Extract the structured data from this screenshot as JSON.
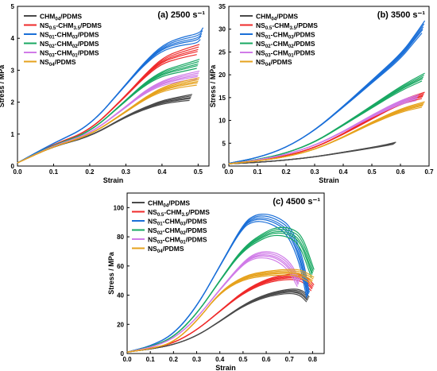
{
  "figure": {
    "y_label": "Stress / MPa",
    "x_label": "Strain"
  },
  "chart_data": [
    {
      "type": "line",
      "panel_title": "(a) 2500 s⁻¹",
      "xlabel": "Strain",
      "ylabel": "Stress / MPa",
      "xlim": [
        0,
        0.53
      ],
      "ylim": [
        0,
        5
      ],
      "x_ticks": [
        "0.0",
        "0.1",
        "0.2",
        "0.3",
        "0.4",
        "0.5"
      ],
      "y_ticks": [
        "0",
        "1",
        "2",
        "3",
        "4",
        "5"
      ],
      "legend_position": "top-left",
      "series": [
        {
          "name": "CHM04/PDMS",
          "label_main": "CHM",
          "label_sub": "04",
          "label_tail": "/PDMS",
          "color": "#4a4a4a",
          "x": [
            0,
            0.1,
            0.2,
            0.3,
            0.35,
            0.4,
            0.45,
            0.48
          ],
          "y": [
            0.1,
            0.62,
            0.92,
            1.55,
            1.8,
            2.0,
            2.1,
            2.15
          ]
        },
        {
          "name": "NS0.5-CHM3.5/PDMS",
          "label_main": "NS",
          "label_sub": "0.5",
          "label_mid": "-CHM",
          "label_sub2": "3.5",
          "label_tail": "/PDMS",
          "color": "#ef2a2a",
          "x": [
            0,
            0.1,
            0.2,
            0.3,
            0.35,
            0.4,
            0.45,
            0.5
          ],
          "y": [
            0.1,
            0.68,
            1.1,
            2.2,
            2.8,
            3.3,
            3.5,
            3.65
          ]
        },
        {
          "name": "NS01-CHM03/PDMS",
          "label_main": "NS",
          "label_sub": "01",
          "label_mid": "-CHM",
          "label_sub2": "03",
          "label_tail": "/PDMS",
          "color": "#1a6fd8",
          "x": [
            0,
            0.1,
            0.2,
            0.3,
            0.35,
            0.4,
            0.45,
            0.5,
            0.51
          ],
          "y": [
            0.1,
            0.72,
            1.25,
            2.55,
            3.2,
            3.7,
            3.9,
            4.0,
            4.15
          ]
        },
        {
          "name": "NS02-CHM02/PDMS",
          "label_main": "NS",
          "label_sub": "02",
          "label_mid": "-CHM",
          "label_sub2": "02",
          "label_tail": "/PDMS",
          "color": "#18a862",
          "x": [
            0,
            0.1,
            0.2,
            0.3,
            0.35,
            0.4,
            0.45,
            0.5
          ],
          "y": [
            0.1,
            0.66,
            1.05,
            2.05,
            2.55,
            2.9,
            3.05,
            3.2
          ]
        },
        {
          "name": "NS03-CHM01/PDMS",
          "label_main": "NS",
          "label_sub": "03",
          "label_mid": "-CHM",
          "label_sub2": "01",
          "label_tail": "/PDMS",
          "color": "#d07be8",
          "x": [
            0,
            0.1,
            0.2,
            0.3,
            0.35,
            0.4,
            0.45,
            0.5
          ],
          "y": [
            0.1,
            0.64,
            1.0,
            1.85,
            2.3,
            2.6,
            2.75,
            2.85
          ]
        },
        {
          "name": "NS04/PDMS",
          "label_main": "NS",
          "label_sub": "04",
          "label_tail": "/PDMS",
          "color": "#e6a21d",
          "x": [
            0,
            0.1,
            0.2,
            0.3,
            0.35,
            0.4,
            0.45,
            0.5
          ],
          "y": [
            0.1,
            0.62,
            0.96,
            1.7,
            2.1,
            2.4,
            2.55,
            2.65
          ]
        }
      ]
    },
    {
      "type": "line",
      "panel_title": "(b) 3500 s⁻¹",
      "xlabel": "Strain",
      "ylabel": "Stress / MPa",
      "xlim": [
        0,
        0.7
      ],
      "ylim": [
        0,
        35
      ],
      "x_ticks": [
        "0.0",
        "0.1",
        "0.2",
        "0.3",
        "0.4",
        "0.5",
        "0.6",
        "0.7"
      ],
      "y_ticks": [
        "0",
        "5",
        "10",
        "15",
        "20",
        "25",
        "30",
        "35"
      ],
      "legend_position": "top-left",
      "series": [
        {
          "name": "CHM04/PDMS",
          "color": "#4a4a4a",
          "x": [
            0,
            0.1,
            0.2,
            0.3,
            0.4,
            0.5,
            0.55,
            0.58
          ],
          "y": [
            0.5,
            0.8,
            1.3,
            2.0,
            3.0,
            4.0,
            4.6,
            5.0
          ]
        },
        {
          "name": "NS0.5-CHM3.5/PDMS",
          "color": "#ef2a2a",
          "x": [
            0,
            0.1,
            0.2,
            0.3,
            0.4,
            0.5,
            0.6,
            0.68
          ],
          "y": [
            0.5,
            1.2,
            2.2,
            4.0,
            7.0,
            10.5,
            14.0,
            15.5
          ]
        },
        {
          "name": "NS01-CHM03/PDMS",
          "color": "#1a6fd8",
          "x": [
            0,
            0.1,
            0.2,
            0.3,
            0.4,
            0.5,
            0.6,
            0.65,
            0.68
          ],
          "y": [
            0.6,
            1.8,
            4.0,
            7.8,
            13.0,
            18.5,
            24.0,
            28.0,
            30.5
          ]
        },
        {
          "name": "NS02-CHM02/PDMS",
          "color": "#18a862",
          "x": [
            0,
            0.1,
            0.2,
            0.3,
            0.4,
            0.5,
            0.6,
            0.68
          ],
          "y": [
            0.5,
            1.4,
            2.8,
            5.2,
            9.0,
            13.0,
            17.0,
            19.5
          ]
        },
        {
          "name": "NS03-CHM01/PDMS",
          "color": "#d07be8",
          "x": [
            0,
            0.1,
            0.2,
            0.3,
            0.4,
            0.5,
            0.6,
            0.66
          ],
          "y": [
            0.5,
            1.3,
            2.5,
            4.5,
            7.5,
            11.0,
            14.0,
            15.0
          ]
        },
        {
          "name": "NS04/PDMS",
          "color": "#e6a21d",
          "x": [
            0,
            0.1,
            0.2,
            0.3,
            0.4,
            0.5,
            0.6,
            0.68
          ],
          "y": [
            0.5,
            1.1,
            2.0,
            3.6,
            6.3,
            9.5,
            12.2,
            13.5
          ]
        }
      ]
    },
    {
      "type": "line",
      "panel_title": "(c) 4500 s⁻¹",
      "xlabel": "Strain",
      "ylabel": "Stress / MPa",
      "xlim": [
        0,
        0.85
      ],
      "ylim": [
        0,
        110
      ],
      "x_ticks": [
        "0.0",
        "0.1",
        "0.2",
        "0.3",
        "0.4",
        "0.5",
        "0.6",
        "0.7",
        "0.8"
      ],
      "y_ticks": [
        "0",
        "20",
        "40",
        "60",
        "80",
        "100"
      ],
      "legend_position": "top-left",
      "series": [
        {
          "name": "CHM04/PDMS",
          "color": "#4a4a4a",
          "x": [
            0,
            0.1,
            0.2,
            0.3,
            0.4,
            0.5,
            0.6,
            0.7,
            0.75,
            0.78
          ],
          "y": [
            1,
            3,
            6,
            12,
            22,
            33,
            40,
            43,
            42,
            37
          ]
        },
        {
          "name": "NS0.5-CHM3.5/PDMS",
          "color": "#ef2a2a",
          "x": [
            0,
            0.1,
            0.2,
            0.3,
            0.4,
            0.5,
            0.6,
            0.7,
            0.76,
            0.8
          ],
          "y": [
            1,
            3.5,
            7,
            16,
            29,
            42,
            50,
            53,
            52,
            45
          ]
        },
        {
          "name": "NS01-CHM03/PDMS",
          "color": "#1a6fd8",
          "x": [
            0,
            0.1,
            0.2,
            0.3,
            0.4,
            0.5,
            0.55,
            0.6,
            0.65,
            0.7,
            0.75,
            0.78
          ],
          "y": [
            1,
            5,
            13,
            32,
            60,
            88,
            93,
            93,
            90,
            84,
            65,
            40
          ]
        },
        {
          "name": "NS02-CHM02/PDMS",
          "color": "#18a862",
          "x": [
            0,
            0.1,
            0.2,
            0.3,
            0.4,
            0.5,
            0.6,
            0.65,
            0.7,
            0.75,
            0.8
          ],
          "y": [
            1,
            4.5,
            11,
            27,
            50,
            72,
            82,
            84,
            83,
            78,
            55
          ]
        },
        {
          "name": "NS03-CHM01/PDMS",
          "color": "#d07be8",
          "x": [
            0,
            0.1,
            0.2,
            0.3,
            0.4,
            0.5,
            0.55,
            0.6,
            0.65,
            0.7,
            0.74
          ],
          "y": [
            1,
            4,
            10,
            24,
            44,
            62,
            67,
            68,
            66,
            60,
            48
          ]
        },
        {
          "name": "NS04/PDMS",
          "color": "#e6a21d",
          "x": [
            0,
            0.1,
            0.2,
            0.3,
            0.4,
            0.5,
            0.6,
            0.7,
            0.75,
            0.8
          ],
          "y": [
            1,
            3.2,
            7.5,
            22,
            42,
            52,
            55,
            56,
            55,
            50
          ]
        }
      ]
    }
  ]
}
